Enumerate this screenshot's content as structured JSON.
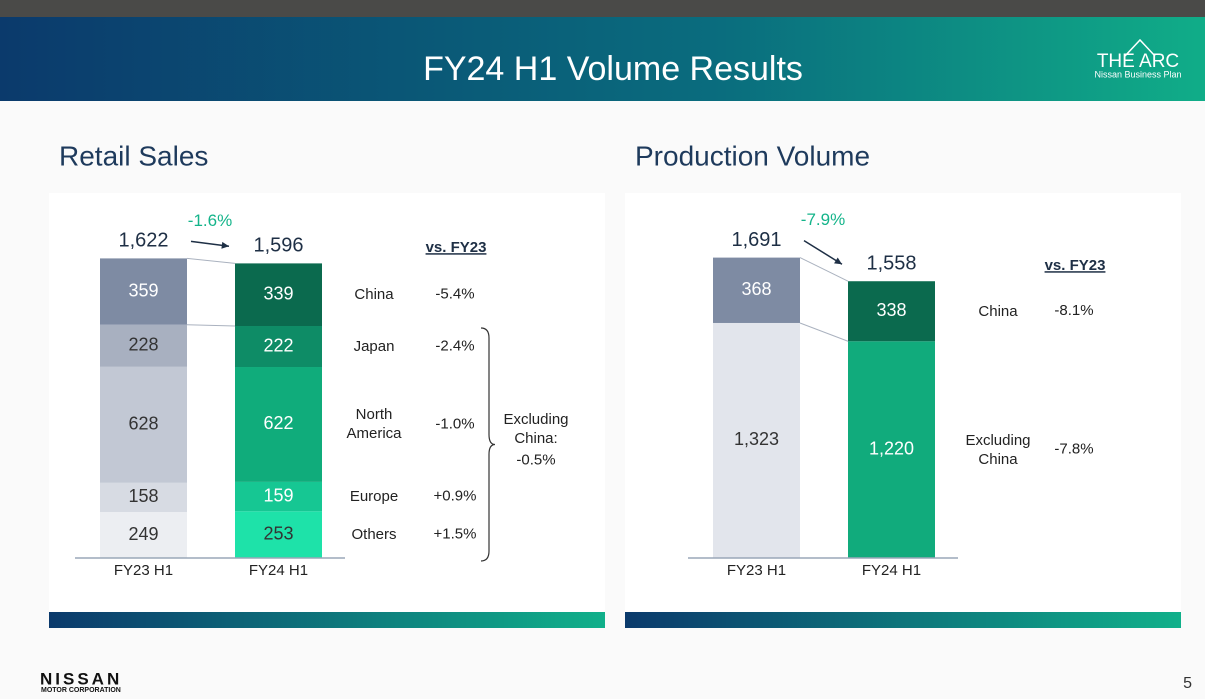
{
  "header": {
    "title": "FY24 H1 Volume Results",
    "logo": "THE ARC",
    "logo_subtitle": "Nissan Business Plan"
  },
  "footer": {
    "brand": "NISSAN",
    "brand_subtitle": "MOTOR CORPORATION",
    "page": 5
  },
  "chart_data": [
    {
      "type": "bar",
      "stacked": true,
      "title": "Retail Sales",
      "categories": [
        "FY23 H1",
        "FY24 H1"
      ],
      "ylim": [
        0,
        1700
      ],
      "totals": [
        1622,
        1596
      ],
      "total_labels": [
        "1,622",
        "1,596"
      ],
      "total_change": {
        "value": -1.6,
        "label": "-1.6%"
      },
      "comparison_label": "vs. FY23",
      "series": [
        {
          "name": "China",
          "colors": [
            "#7e8ba3",
            "#0b6a4e"
          ],
          "values": [
            359,
            339
          ],
          "change": -5.4,
          "change_label": "-5.4%"
        },
        {
          "name": "Japan",
          "colors": [
            "#a8b0c0",
            "#0e8c66"
          ],
          "values": [
            228,
            222
          ],
          "change": -2.4,
          "change_label": "-2.4%"
        },
        {
          "name": "North America",
          "colors": [
            "#c2c8d4",
            "#10ac7b"
          ],
          "values": [
            628,
            622
          ],
          "change": -1.0,
          "change_label": "-1.0%"
        },
        {
          "name": "Europe",
          "colors": [
            "#d7dbe3",
            "#16c793"
          ],
          "values": [
            158,
            159
          ],
          "change": 0.9,
          "change_label": "+0.9%"
        },
        {
          "name": "Others",
          "colors": [
            "#eceef2",
            "#1ee2a9"
          ],
          "values": [
            249,
            253
          ],
          "change": 1.5,
          "change_label": "+1.5%"
        }
      ],
      "group": {
        "label": "Excluding China:",
        "change": -0.5,
        "change_label": "-0.5%"
      }
    },
    {
      "type": "bar",
      "stacked": true,
      "title": "Production Volume",
      "categories": [
        "FY23 H1",
        "FY24 H1"
      ],
      "ylim": [
        0,
        1700
      ],
      "totals": [
        1691,
        1558
      ],
      "total_labels": [
        "1,691",
        "1,558"
      ],
      "total_change": {
        "value": -7.9,
        "label": "-7.9%"
      },
      "comparison_label": "vs. FY23",
      "series": [
        {
          "name": "China",
          "colors": [
            "#7e8ba3",
            "#0b6a4e"
          ],
          "values": [
            368,
            338
          ],
          "change": -8.1,
          "change_label": "-8.1%"
        },
        {
          "name": "Excluding China",
          "colors": [
            "#e2e5ec",
            "#11ab7c"
          ],
          "values": [
            1323,
            1220
          ],
          "value_labels": [
            "1,323",
            "1,220"
          ],
          "change": -7.8,
          "change_label": "-7.8%"
        }
      ]
    }
  ]
}
